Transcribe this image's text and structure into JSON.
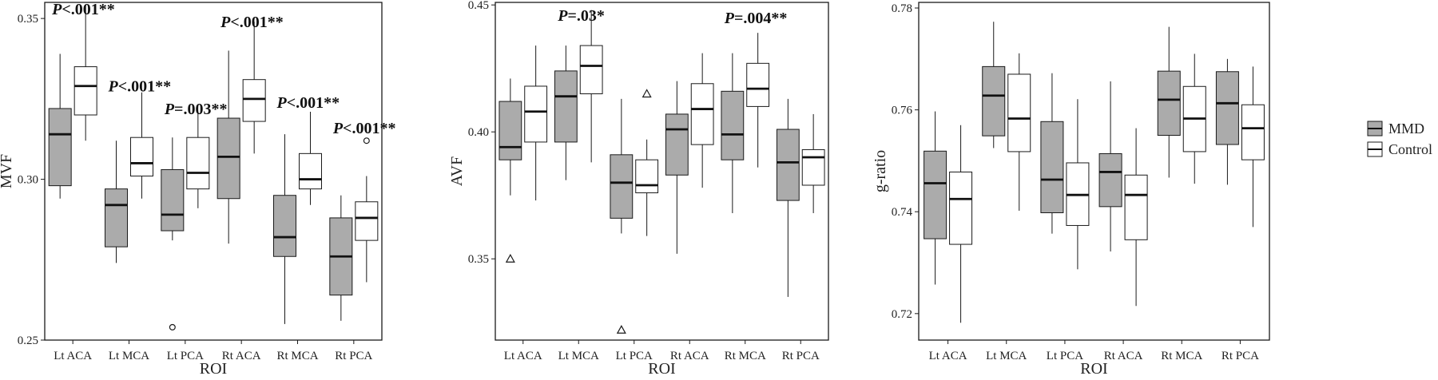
{
  "legend": {
    "items": [
      {
        "label": "MMD",
        "color": "#ABABAB"
      },
      {
        "label": "Control",
        "color": "#FFFFFF"
      }
    ]
  },
  "chart_data": [
    {
      "type": "box",
      "xlabel": "ROI",
      "ylabel": "MVF",
      "ylim": [
        0.25,
        0.355
      ],
      "yticks": [
        "0.25",
        "0.30",
        "0.35"
      ],
      "grid": false,
      "outlier_marker": "circle",
      "categories": [
        "Lt ACA",
        "Lt MCA",
        "Lt PCA",
        "Rt ACA",
        "Rt MCA",
        "Rt PCA"
      ],
      "series": [
        {
          "name": "MMD",
          "boxes": [
            {
              "min": 0.294,
              "q1": 0.298,
              "median": 0.314,
              "q3": 0.322,
              "max": 0.339,
              "outliers": []
            },
            {
              "min": 0.274,
              "q1": 0.279,
              "median": 0.292,
              "q3": 0.297,
              "max": 0.312,
              "outliers": []
            },
            {
              "min": 0.281,
              "q1": 0.284,
              "median": 0.289,
              "q3": 0.303,
              "max": 0.313,
              "outliers": [
                0.254
              ]
            },
            {
              "min": 0.28,
              "q1": 0.294,
              "median": 0.307,
              "q3": 0.319,
              "max": 0.34,
              "outliers": []
            },
            {
              "min": 0.255,
              "q1": 0.276,
              "median": 0.282,
              "q3": 0.295,
              "max": 0.314,
              "outliers": []
            },
            {
              "min": 0.256,
              "q1": 0.264,
              "median": 0.276,
              "q3": 0.288,
              "max": 0.295,
              "outliers": []
            }
          ]
        },
        {
          "name": "Control",
          "boxes": [
            {
              "min": 0.312,
              "q1": 0.32,
              "median": 0.329,
              "q3": 0.335,
              "max": 0.354,
              "outliers": []
            },
            {
              "min": 0.294,
              "q1": 0.301,
              "median": 0.305,
              "q3": 0.313,
              "max": 0.327,
              "outliers": []
            },
            {
              "min": 0.291,
              "q1": 0.297,
              "median": 0.302,
              "q3": 0.313,
              "max": 0.321,
              "outliers": []
            },
            {
              "min": 0.308,
              "q1": 0.318,
              "median": 0.325,
              "q3": 0.331,
              "max": 0.349,
              "outliers": []
            },
            {
              "min": 0.292,
              "q1": 0.297,
              "median": 0.3,
              "q3": 0.308,
              "max": 0.321,
              "outliers": []
            },
            {
              "min": 0.268,
              "q1": 0.281,
              "median": 0.288,
              "q3": 0.293,
              "max": 0.301,
              "outliers": [
                0.312
              ]
            }
          ]
        }
      ],
      "annotations": [
        {
          "category": "Lt ACA",
          "p": "P",
          "text": "<.001**",
          "y": 0.353
        },
        {
          "category": "Lt MCA",
          "p": "P",
          "text": "<.001**",
          "y": 0.329
        },
        {
          "category": "Lt PCA",
          "p": "P",
          "text": "=.003**",
          "y": 0.322
        },
        {
          "category": "Rt ACA",
          "p": "P",
          "text": "<.001**",
          "y": 0.349
        },
        {
          "category": "Rt MCA",
          "p": "P",
          "text": "<.001**",
          "y": 0.324
        },
        {
          "category": "Rt PCA",
          "p": "P",
          "text": "<.001**",
          "y": 0.316
        }
      ]
    },
    {
      "type": "box",
      "xlabel": "ROI",
      "ylabel": "AVF",
      "ylim": [
        0.318,
        0.451
      ],
      "yticks": [
        "0.35",
        "0.40",
        "0.45"
      ],
      "grid": false,
      "outlier_marker": "triangle",
      "categories": [
        "Lt ACA",
        "Lt MCA",
        "Lt PCA",
        "Rt ACA",
        "Rt MCA",
        "Rt PCA"
      ],
      "series": [
        {
          "name": "MMD",
          "boxes": [
            {
              "min": 0.375,
              "q1": 0.389,
              "median": 0.394,
              "q3": 0.412,
              "max": 0.421,
              "outliers": [
                0.35
              ]
            },
            {
              "min": 0.381,
              "q1": 0.396,
              "median": 0.414,
              "q3": 0.424,
              "max": 0.434,
              "outliers": []
            },
            {
              "min": 0.36,
              "q1": 0.366,
              "median": 0.38,
              "q3": 0.391,
              "max": 0.413,
              "outliers": [
                0.322
              ]
            },
            {
              "min": 0.352,
              "q1": 0.383,
              "median": 0.401,
              "q3": 0.407,
              "max": 0.42,
              "outliers": []
            },
            {
              "min": 0.368,
              "q1": 0.389,
              "median": 0.399,
              "q3": 0.416,
              "max": 0.431,
              "outliers": []
            },
            {
              "min": 0.335,
              "q1": 0.373,
              "median": 0.388,
              "q3": 0.401,
              "max": 0.413,
              "outliers": []
            }
          ]
        },
        {
          "name": "Control",
          "boxes": [
            {
              "min": 0.373,
              "q1": 0.396,
              "median": 0.408,
              "q3": 0.418,
              "max": 0.434,
              "outliers": []
            },
            {
              "min": 0.388,
              "q1": 0.415,
              "median": 0.426,
              "q3": 0.434,
              "max": 0.448,
              "outliers": []
            },
            {
              "min": 0.359,
              "q1": 0.376,
              "median": 0.379,
              "q3": 0.389,
              "max": 0.397,
              "outliers": [
                0.415
              ]
            },
            {
              "min": 0.378,
              "q1": 0.395,
              "median": 0.409,
              "q3": 0.419,
              "max": 0.431,
              "outliers": []
            },
            {
              "min": 0.386,
              "q1": 0.41,
              "median": 0.417,
              "q3": 0.427,
              "max": 0.439,
              "outliers": []
            },
            {
              "min": 0.368,
              "q1": 0.379,
              "median": 0.39,
              "q3": 0.393,
              "max": 0.407,
              "outliers": []
            }
          ]
        }
      ],
      "annotations": [
        {
          "category": "Lt MCA",
          "p": "P",
          "text": "=.03*",
          "y": 0.446
        },
        {
          "category": "Rt MCA",
          "p": "P",
          "text": "=.004**",
          "y": 0.445
        }
      ]
    },
    {
      "type": "box",
      "xlabel": "ROI",
      "ylabel": "g-ratio",
      "ylim": [
        0.7148,
        0.7811
      ],
      "yticks": [
        "0.72",
        "0.74",
        "0.76",
        "0.78"
      ],
      "grid": false,
      "outlier_marker": "circle",
      "categories": [
        "Lt ACA",
        "Lt MCA",
        "Lt PCA",
        "Rt ACA",
        "Rt MCA",
        "Rt PCA"
      ],
      "series": [
        {
          "name": "MMD",
          "boxes": [
            {
              "min": 0.7257,
              "q1": 0.7347,
              "median": 0.7456,
              "q3": 0.7519,
              "max": 0.7597,
              "outliers": []
            },
            {
              "min": 0.7525,
              "q1": 0.7549,
              "median": 0.7628,
              "q3": 0.7685,
              "max": 0.7773,
              "outliers": []
            },
            {
              "min": 0.7357,
              "q1": 0.7398,
              "median": 0.7463,
              "q3": 0.7577,
              "max": 0.7672,
              "outliers": []
            },
            {
              "min": 0.7322,
              "q1": 0.741,
              "median": 0.7478,
              "q3": 0.7514,
              "max": 0.7656,
              "outliers": []
            },
            {
              "min": 0.7467,
              "q1": 0.755,
              "median": 0.762,
              "q3": 0.7676,
              "max": 0.7763,
              "outliers": []
            },
            {
              "min": 0.7453,
              "q1": 0.7532,
              "median": 0.7613,
              "q3": 0.7675,
              "max": 0.77,
              "outliers": []
            }
          ]
        },
        {
          "name": "Control",
          "boxes": [
            {
              "min": 0.7182,
              "q1": 0.7336,
              "median": 0.7425,
              "q3": 0.7478,
              "max": 0.757,
              "outliers": []
            },
            {
              "min": 0.7402,
              "q1": 0.7518,
              "median": 0.7583,
              "q3": 0.767,
              "max": 0.7711,
              "outliers": []
            },
            {
              "min": 0.7287,
              "q1": 0.7373,
              "median": 0.7433,
              "q3": 0.7496,
              "max": 0.7621,
              "outliers": []
            },
            {
              "min": 0.7215,
              "q1": 0.7345,
              "median": 0.7433,
              "q3": 0.7472,
              "max": 0.7564,
              "outliers": []
            },
            {
              "min": 0.7455,
              "q1": 0.7518,
              "median": 0.7583,
              "q3": 0.7646,
              "max": 0.771,
              "outliers": []
            },
            {
              "min": 0.737,
              "q1": 0.7502,
              "median": 0.7564,
              "q3": 0.761,
              "max": 0.7685,
              "outliers": []
            }
          ]
        }
      ],
      "annotations": []
    }
  ]
}
